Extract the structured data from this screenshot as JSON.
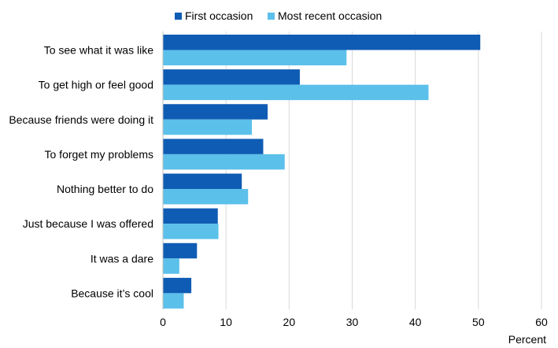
{
  "chart_data": {
    "type": "bar",
    "orientation": "horizontal",
    "categories": [
      "To see what it was like",
      "To get high or feel good",
      "Because friends were doing it",
      "To forget my problems",
      "Nothing better to do",
      "Just because I was offered",
      "It was a dare",
      "Because it’s cool"
    ],
    "series": [
      {
        "name": "First occasion",
        "color": "#0f5cb4",
        "values": [
          50.3,
          21.7,
          16.6,
          15.9,
          12.5,
          8.7,
          5.4,
          4.5
        ]
      },
      {
        "name": "Most recent occasion",
        "color": "#5bc0ea",
        "values": [
          29.1,
          42.1,
          14.1,
          19.3,
          13.5,
          8.8,
          2.6,
          3.3
        ]
      }
    ],
    "xlim": [
      0,
      60
    ],
    "xticks": [
      "0",
      "10",
      "20",
      "30",
      "40",
      "50",
      "60"
    ],
    "xlabel": "Percent",
    "ylabel": "",
    "title": "",
    "grid": "vertical",
    "legend": "top-center"
  }
}
